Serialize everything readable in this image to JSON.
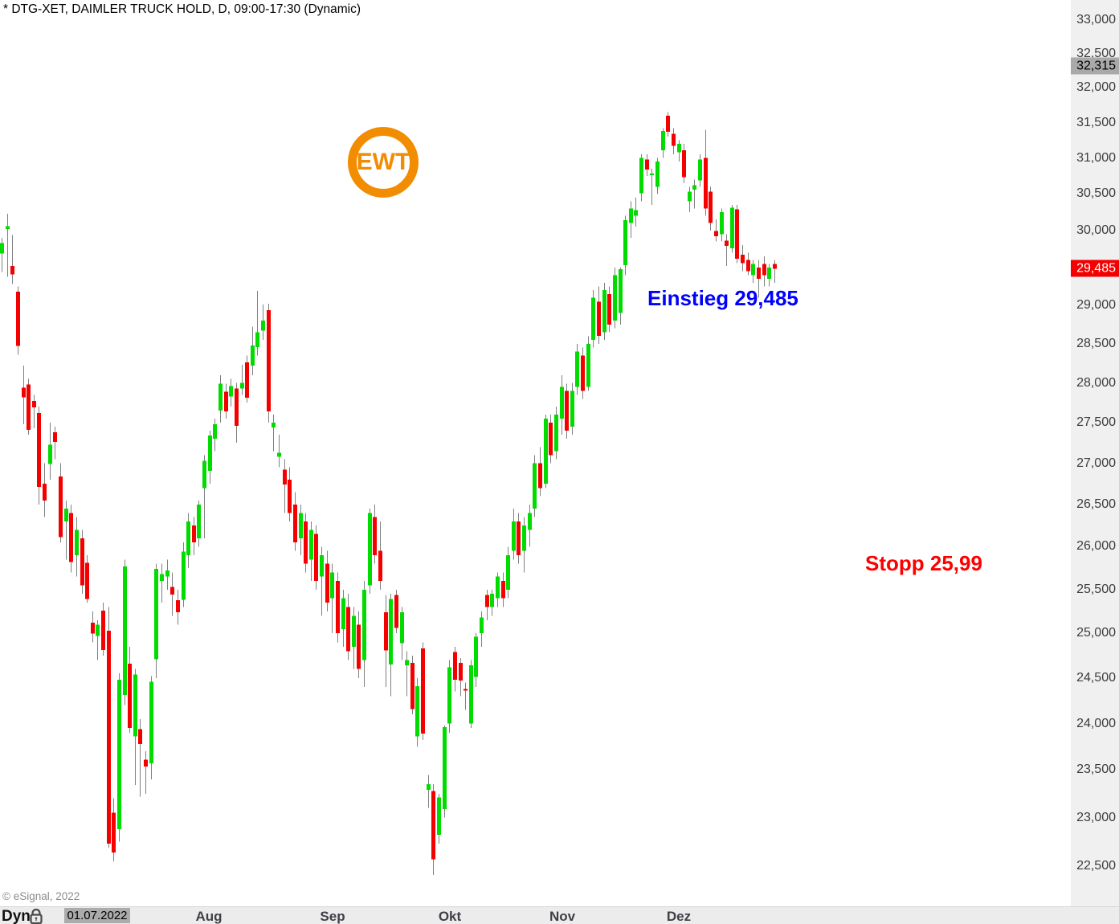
{
  "window": {
    "title": "* DTG-XET, DAIMLER TRUCK HOLD, D, 09:00-17:30 (Dynamic)"
  },
  "copyright": "© eSignal, 2022",
  "logo": {
    "text": "EWT",
    "color": "#F28C00"
  },
  "annotations": {
    "entry": {
      "text": "Einstieg 29,485",
      "color": "#0000FF",
      "value": 29485
    },
    "stop": {
      "text": "Stopp 25,99",
      "color": "#FF0000",
      "value": 25990
    }
  },
  "toolbar": {
    "mode_label": "Dyn",
    "lock_icon": "padlock-icon",
    "date_label": "01.07.2022",
    "month_labels": [
      "Aug",
      "Sep",
      "Okt",
      "Nov",
      "Dez"
    ]
  },
  "axis_markers": [
    {
      "label": "32,315",
      "value": 32315,
      "bg": "#A9A9A9",
      "fg": "#000000",
      "name": "reference-price-box"
    },
    {
      "label": "29,485",
      "value": 29485,
      "bg": "#F40000",
      "fg": "#FFFFFF",
      "name": "last-price-box"
    }
  ],
  "chart_data": {
    "type": "candlestick",
    "symbol": "DTG-XET",
    "instrument": "DAIMLER TRUCK HOLD",
    "interval": "D",
    "session": "09:00-17:30 (Dynamic)",
    "scale": "logarithmic",
    "ylim": [
      22500,
      33000
    ],
    "last_price": 29485,
    "reference_price": 32315,
    "grid": false,
    "legend": false,
    "colors": {
      "up": "#00DB00",
      "down": "#F50000",
      "wick": "#808080"
    },
    "yticks": [
      {
        "label": "33,000",
        "value": 33000
      },
      {
        "label": "32,500",
        "value": 32500
      },
      {
        "label": "32,000",
        "value": 32000
      },
      {
        "label": "31,500",
        "value": 31500
      },
      {
        "label": "31,000",
        "value": 31000
      },
      {
        "label": "30,500",
        "value": 30500
      },
      {
        "label": "30,000",
        "value": 30000
      },
      {
        "label": "29,000",
        "value": 29000
      },
      {
        "label": "28,500",
        "value": 28500
      },
      {
        "label": "28,000",
        "value": 28000
      },
      {
        "label": "27,500",
        "value": 27500
      },
      {
        "label": "27,000",
        "value": 27000
      },
      {
        "label": "26,500",
        "value": 26500
      },
      {
        "label": "26,000",
        "value": 26000
      },
      {
        "label": "25,500",
        "value": 25500
      },
      {
        "label": "25,000",
        "value": 25000
      },
      {
        "label": "24,500",
        "value": 24500
      },
      {
        "label": "24,000",
        "value": 24000
      },
      {
        "label": "23,500",
        "value": 23500
      },
      {
        "label": "23,000",
        "value": 23000
      },
      {
        "label": "22,500",
        "value": 22500
      }
    ],
    "x_axis": {
      "start_date_label": "01.07.2022",
      "months": [
        "Aug",
        "Sep",
        "Okt",
        "Nov",
        "Dez"
      ]
    },
    "ohlc": [
      [
        29690,
        29900,
        29440,
        29830
      ],
      [
        30020,
        30230,
        29380,
        30060
      ],
      [
        29520,
        29940,
        29280,
        29410
      ],
      [
        29180,
        29250,
        28360,
        28470
      ],
      [
        27940,
        28220,
        27480,
        27820
      ],
      [
        27980,
        28050,
        27350,
        27410
      ],
      [
        27770,
        27850,
        27430,
        27690
      ],
      [
        27620,
        27700,
        26500,
        26710
      ],
      [
        26750,
        27000,
        26350,
        26550
      ],
      [
        26990,
        27500,
        26800,
        27230
      ],
      [
        27380,
        27450,
        27050,
        27260
      ],
      [
        26840,
        27000,
        26050,
        26110
      ],
      [
        26300,
        26550,
        25850,
        26450
      ],
      [
        26400,
        26500,
        25700,
        25820
      ],
      [
        25900,
        26350,
        25650,
        26200
      ],
      [
        26100,
        26200,
        25450,
        25550
      ],
      [
        25810,
        25900,
        25350,
        25390
      ],
      [
        25120,
        25250,
        24900,
        25000
      ],
      [
        24970,
        25150,
        24700,
        25100
      ],
      [
        25260,
        25350,
        24750,
        24810
      ],
      [
        25030,
        25300,
        22690,
        22730
      ],
      [
        23050,
        23200,
        22550,
        22640
      ],
      [
        22880,
        24550,
        22750,
        24480
      ],
      [
        24310,
        25850,
        24200,
        25770
      ],
      [
        24660,
        24850,
        23900,
        23950
      ],
      [
        23860,
        24600,
        23340,
        24540
      ],
      [
        23940,
        24050,
        23220,
        23780
      ],
      [
        23610,
        23700,
        23250,
        23540
      ],
      [
        23570,
        24520,
        23400,
        24460
      ],
      [
        24710,
        25800,
        24500,
        25740
      ],
      [
        25600,
        25800,
        25350,
        25680
      ],
      [
        25650,
        25850,
        25500,
        25720
      ],
      [
        25530,
        25700,
        25200,
        25440
      ],
      [
        25380,
        25500,
        25100,
        25240
      ],
      [
        25380,
        26050,
        25300,
        25940
      ],
      [
        25900,
        26400,
        25750,
        26300
      ],
      [
        26250,
        26350,
        25900,
        26050
      ],
      [
        26100,
        26550,
        26000,
        26500
      ],
      [
        26700,
        27100,
        26100,
        27030
      ],
      [
        26910,
        27400,
        26750,
        27340
      ],
      [
        27300,
        27550,
        27150,
        27480
      ],
      [
        27650,
        28100,
        27500,
        27990
      ],
      [
        27890,
        27990,
        27550,
        27640
      ],
      [
        27830,
        28050,
        27700,
        27960
      ],
      [
        27930,
        28000,
        27250,
        27460
      ],
      [
        27930,
        28230,
        27850,
        28000
      ],
      [
        28260,
        28350,
        27750,
        27810
      ],
      [
        28220,
        28720,
        28100,
        28480
      ],
      [
        28460,
        29190,
        28350,
        28650
      ],
      [
        28670,
        29010,
        28550,
        28800
      ],
      [
        28940,
        29020,
        27500,
        27640
      ],
      [
        27440,
        27600,
        27150,
        27500
      ],
      [
        27080,
        27350,
        26950,
        27130
      ],
      [
        26920,
        27050,
        26400,
        26740
      ],
      [
        26800,
        26950,
        26300,
        26400
      ],
      [
        26500,
        26650,
        25950,
        26050
      ],
      [
        26100,
        26500,
        25900,
        26400
      ],
      [
        26300,
        26400,
        25700,
        25800
      ],
      [
        25850,
        26300,
        25600,
        26200
      ],
      [
        26150,
        26250,
        25500,
        25600
      ],
      [
        25650,
        26000,
        25200,
        25900
      ],
      [
        25800,
        25950,
        25250,
        25350
      ],
      [
        25400,
        25800,
        25000,
        25700
      ],
      [
        25600,
        25700,
        24900,
        25000
      ],
      [
        25050,
        25500,
        24850,
        25400
      ],
      [
        25300,
        25450,
        24700,
        24800
      ],
      [
        24850,
        25300,
        24600,
        25200
      ],
      [
        25100,
        25250,
        24500,
        24600
      ],
      [
        24700,
        25600,
        24400,
        25500
      ],
      [
        25550,
        26450,
        25450,
        26400
      ],
      [
        26350,
        26500,
        25800,
        25900
      ],
      [
        25950,
        26300,
        25500,
        25600
      ],
      [
        25240,
        25440,
        24400,
        24810
      ],
      [
        24650,
        25450,
        24300,
        25390
      ],
      [
        25440,
        25500,
        25000,
        25060
      ],
      [
        24890,
        25300,
        24700,
        25240
      ],
      [
        24640,
        24800,
        24300,
        24700
      ],
      [
        24670,
        24750,
        24100,
        24160
      ],
      [
        23860,
        24500,
        23750,
        24410
      ],
      [
        24830,
        24900,
        23820,
        23890
      ],
      [
        23290,
        23450,
        23100,
        23350
      ],
      [
        23280,
        23350,
        22410,
        22570
      ],
      [
        22820,
        23250,
        22730,
        23210
      ],
      [
        23090,
        23980,
        23000,
        23960
      ],
      [
        24000,
        24700,
        23900,
        24620
      ],
      [
        24790,
        24850,
        24350,
        24480
      ],
      [
        24670,
        24720,
        24300,
        24470
      ],
      [
        24380,
        24450,
        24150,
        24360
      ],
      [
        24000,
        24700,
        23950,
        24640
      ],
      [
        24510,
        25000,
        24400,
        24960
      ],
      [
        25000,
        25250,
        24850,
        25180
      ],
      [
        25440,
        25500,
        25150,
        25300
      ],
      [
        25300,
        25500,
        25200,
        25450
      ],
      [
        25400,
        25700,
        25300,
        25650
      ],
      [
        25600,
        25700,
        25300,
        25400
      ],
      [
        25500,
        26000,
        25400,
        25900
      ],
      [
        25950,
        26450,
        25850,
        26300
      ],
      [
        26300,
        26400,
        25800,
        25900
      ],
      [
        25950,
        26350,
        25700,
        26250
      ],
      [
        26200,
        26500,
        26000,
        26400
      ],
      [
        26450,
        27100,
        26350,
        27000
      ],
      [
        27000,
        27200,
        26600,
        26700
      ],
      [
        26750,
        27600,
        26700,
        27550
      ],
      [
        27500,
        27600,
        27000,
        27100
      ],
      [
        27150,
        27700,
        27050,
        27600
      ],
      [
        27550,
        28100,
        27350,
        27950
      ],
      [
        27900,
        27990,
        27300,
        27400
      ],
      [
        27450,
        28000,
        27350,
        27900
      ],
      [
        27950,
        28500,
        27850,
        28400
      ],
      [
        28350,
        28450,
        27800,
        27900
      ],
      [
        27950,
        28600,
        27900,
        28500
      ],
      [
        28550,
        29200,
        28450,
        29100
      ],
      [
        29050,
        29250,
        28500,
        28600
      ],
      [
        28650,
        29300,
        28550,
        29200
      ],
      [
        29150,
        29250,
        28650,
        28750
      ],
      [
        28800,
        29500,
        28700,
        29400
      ],
      [
        28900,
        29500,
        28750,
        29480
      ],
      [
        29535,
        30200,
        29400,
        30140
      ],
      [
        30100,
        30400,
        29900,
        30300
      ],
      [
        30200,
        30450,
        30050,
        30280
      ],
      [
        30510,
        31050,
        30400,
        31000
      ],
      [
        30980,
        31050,
        30750,
        30840
      ],
      [
        30770,
        30850,
        30350,
        30780
      ],
      [
        30600,
        31000,
        30500,
        30950
      ],
      [
        31110,
        31420,
        31000,
        31380
      ],
      [
        31600,
        31650,
        31300,
        31370
      ],
      [
        31340,
        31420,
        31050,
        31170
      ],
      [
        31080,
        31250,
        30950,
        31200
      ],
      [
        31110,
        31200,
        30650,
        30730
      ],
      [
        30400,
        30600,
        30250,
        30530
      ],
      [
        30560,
        30700,
        30300,
        30620
      ],
      [
        30690,
        31050,
        30600,
        30980
      ],
      [
        31000,
        31400,
        30200,
        30300
      ],
      [
        30530,
        30600,
        30000,
        30100
      ],
      [
        29990,
        30150,
        29850,
        29920
      ],
      [
        29950,
        30300,
        29850,
        30250
      ],
      [
        29860,
        29950,
        29520,
        29790
      ],
      [
        29760,
        30350,
        29700,
        30310
      ],
      [
        30290,
        30350,
        29560,
        29620
      ],
      [
        29670,
        29800,
        29450,
        29560
      ],
      [
        29600,
        29700,
        29400,
        29450
      ],
      [
        29400,
        29600,
        29300,
        29550
      ],
      [
        29500,
        29600,
        29100,
        29350
      ],
      [
        29550,
        29650,
        29250,
        29400
      ],
      [
        29350,
        29550,
        29250,
        29500
      ],
      [
        29550,
        29600,
        29300,
        29485
      ]
    ]
  }
}
